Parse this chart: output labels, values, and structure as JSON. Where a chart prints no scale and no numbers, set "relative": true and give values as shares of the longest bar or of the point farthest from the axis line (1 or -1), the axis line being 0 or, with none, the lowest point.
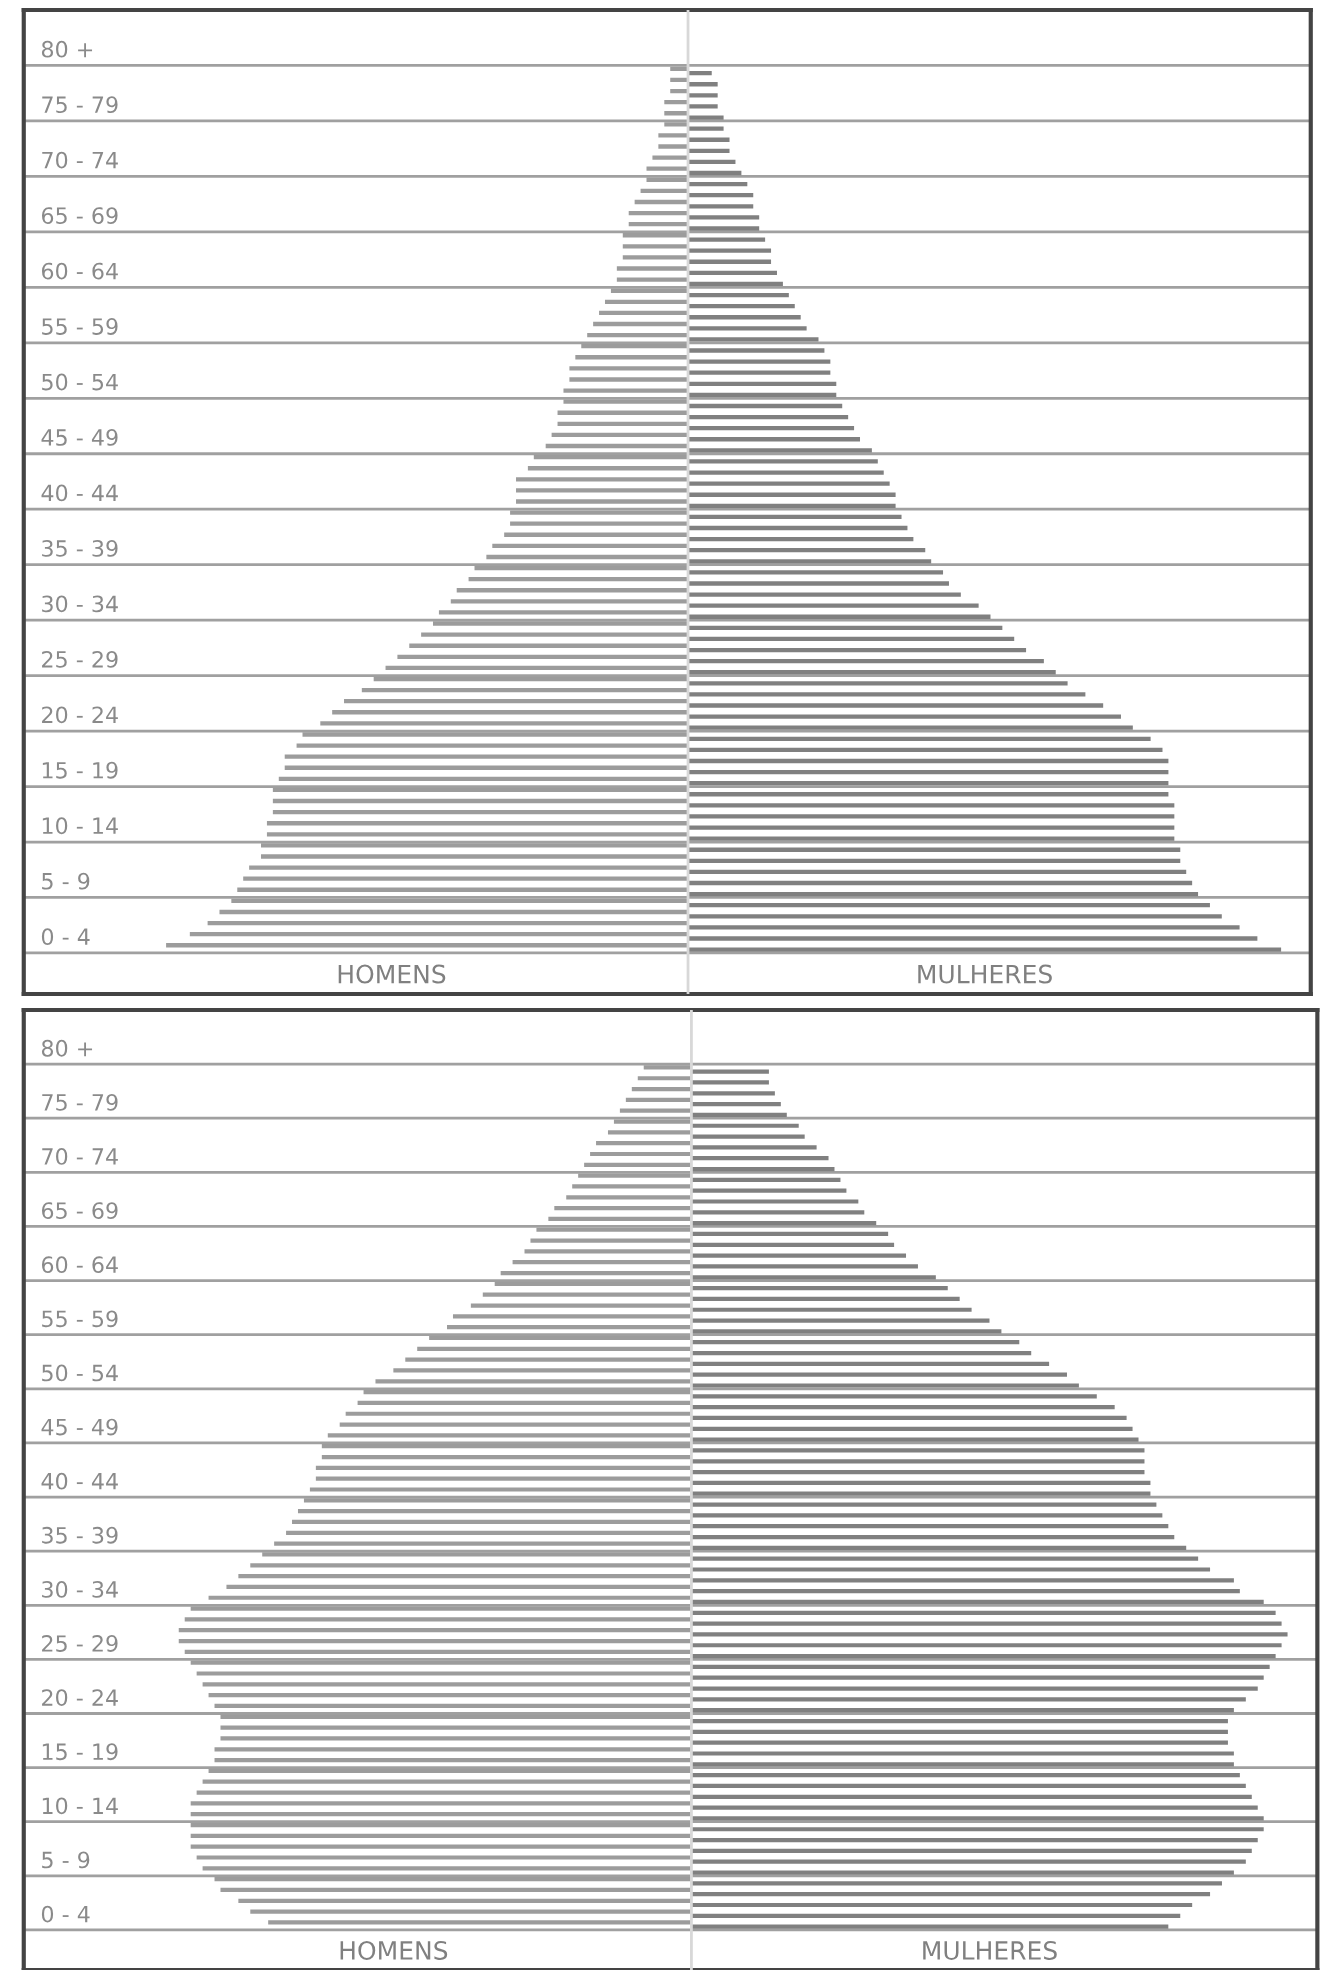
{
  "chart_data": [
    {
      "type": "bar",
      "orientation": "horizontal",
      "relative": true,
      "grid": "y",
      "categories": [
        null,
        null,
        null,
        "80 +",
        null,
        null,
        null,
        null,
        "75 - 79",
        null,
        null,
        null,
        null,
        "70 - 74",
        null,
        null,
        null,
        null,
        "65 - 69",
        null,
        null,
        null,
        null,
        "60 - 64",
        null,
        null,
        null,
        null,
        "55 - 59",
        null,
        null,
        null,
        null,
        "50 - 54",
        null,
        null,
        null,
        null,
        "45 - 49",
        null,
        null,
        null,
        null,
        "40 - 44",
        null,
        null,
        null,
        null,
        "35 - 39",
        null,
        null,
        null,
        null,
        "30 - 34",
        null,
        null,
        null,
        null,
        "25 - 29",
        null,
        null,
        null,
        null,
        "20 - 24",
        null,
        null,
        null,
        null,
        "15 - 19",
        null,
        null,
        null,
        null,
        "10 - 14",
        null,
        null,
        null,
        null,
        "5 - 9",
        null,
        null,
        null,
        null,
        "0 - 4",
        null
      ],
      "series": [
        {
          "name": "HOMENS",
          "color": "#9c9c9c",
          "values": [
            null,
            null,
            null,
            null,
            null,
            -0.03,
            -0.03,
            -0.03,
            -0.04,
            -0.04,
            -0.04,
            -0.05,
            -0.05,
            -0.06,
            -0.07,
            -0.07,
            -0.08,
            -0.09,
            -0.1,
            -0.1,
            -0.11,
            -0.11,
            -0.11,
            -0.12,
            -0.12,
            -0.13,
            -0.14,
            -0.15,
            -0.16,
            -0.17,
            -0.18,
            -0.19,
            -0.2,
            -0.2,
            -0.21,
            -0.21,
            -0.22,
            -0.22,
            -0.23,
            -0.24,
            -0.26,
            -0.27,
            -0.29,
            -0.29,
            -0.29,
            -0.3,
            -0.3,
            -0.31,
            -0.33,
            -0.34,
            -0.36,
            -0.37,
            -0.39,
            -0.4,
            -0.42,
            -0.43,
            -0.45,
            -0.47,
            -0.49,
            -0.51,
            -0.53,
            -0.55,
            -0.58,
            -0.6,
            -0.62,
            -0.65,
            -0.66,
            -0.68,
            -0.68,
            -0.69,
            -0.7,
            -0.7,
            -0.7,
            -0.71,
            -0.71,
            -0.72,
            -0.72,
            -0.74,
            -0.75,
            -0.76,
            -0.77,
            -0.79,
            -0.81,
            -0.84,
            -0.88
          ]
        },
        {
          "name": "MULHERES",
          "color": "#808080",
          "values": [
            null,
            null,
            null,
            null,
            null,
            0.04,
            0.05,
            0.05,
            0.05,
            0.06,
            0.06,
            0.07,
            0.07,
            0.08,
            0.09,
            0.1,
            0.11,
            0.11,
            0.12,
            0.12,
            0.13,
            0.14,
            0.14,
            0.15,
            0.16,
            0.17,
            0.18,
            0.19,
            0.2,
            0.22,
            0.23,
            0.24,
            0.24,
            0.25,
            0.25,
            0.26,
            0.27,
            0.28,
            0.29,
            0.31,
            0.32,
            0.33,
            0.34,
            0.35,
            0.35,
            0.36,
            0.37,
            0.38,
            0.4,
            0.41,
            0.43,
            0.44,
            0.46,
            0.49,
            0.51,
            0.53,
            0.55,
            0.57,
            0.6,
            0.62,
            0.64,
            0.67,
            0.7,
            0.73,
            0.75,
            0.78,
            0.8,
            0.81,
            0.81,
            0.81,
            0.81,
            0.82,
            0.82,
            0.82,
            0.82,
            0.83,
            0.83,
            0.84,
            0.85,
            0.86,
            0.88,
            0.9,
            0.93,
            0.96,
            1.0
          ]
        }
      ]
    },
    {
      "type": "bar",
      "orientation": "horizontal",
      "relative": true,
      "grid": "y",
      "categories": [
        null,
        null,
        null,
        "80 +",
        null,
        null,
        null,
        null,
        "75 - 79",
        null,
        null,
        null,
        null,
        "70 - 74",
        null,
        null,
        null,
        null,
        "65 - 69",
        null,
        null,
        null,
        null,
        "60 - 64",
        null,
        null,
        null,
        null,
        "55 - 59",
        null,
        null,
        null,
        null,
        "50 - 54",
        null,
        null,
        null,
        null,
        "45 - 49",
        null,
        null,
        null,
        null,
        "40 - 44",
        null,
        null,
        null,
        null,
        "35 - 39",
        null,
        null,
        null,
        null,
        "30 - 34",
        null,
        null,
        null,
        null,
        "25 - 29",
        null,
        null,
        null,
        null,
        "20 - 24",
        null,
        null,
        null,
        null,
        "15 - 19",
        null,
        null,
        null,
        null,
        "10 - 14",
        null,
        null,
        null,
        null,
        "5 - 9",
        null,
        null,
        null,
        null,
        "0 - 4",
        null
      ],
      "series": [
        {
          "name": "HOMENS",
          "color": "#9c9c9c",
          "values": [
            null,
            null,
            null,
            null,
            null,
            -0.08,
            -0.09,
            -0.1,
            -0.11,
            -0.12,
            -0.13,
            -0.14,
            -0.16,
            -0.17,
            -0.18,
            -0.19,
            -0.2,
            -0.21,
            -0.23,
            -0.24,
            -0.26,
            -0.27,
            -0.28,
            -0.3,
            -0.32,
            -0.33,
            -0.35,
            -0.37,
            -0.4,
            -0.41,
            -0.44,
            -0.46,
            -0.48,
            -0.5,
            -0.53,
            -0.55,
            -0.56,
            -0.58,
            -0.59,
            -0.61,
            -0.62,
            -0.62,
            -0.63,
            -0.63,
            -0.64,
            -0.65,
            -0.66,
            -0.67,
            -0.68,
            -0.7,
            -0.72,
            -0.74,
            -0.76,
            -0.78,
            -0.81,
            -0.84,
            -0.85,
            -0.86,
            -0.86,
            -0.85,
            -0.84,
            -0.83,
            -0.82,
            -0.81,
            -0.8,
            -0.79,
            -0.79,
            -0.79,
            -0.8,
            -0.8,
            -0.81,
            -0.82,
            -0.83,
            -0.84,
            -0.84,
            -0.84,
            -0.84,
            -0.84,
            -0.83,
            -0.82,
            -0.8,
            -0.79,
            -0.76,
            -0.74,
            -0.71
          ]
        },
        {
          "name": "MULHERES",
          "color": "#808080",
          "values": [
            null,
            null,
            null,
            null,
            null,
            0.13,
            0.13,
            0.14,
            0.15,
            0.16,
            0.18,
            0.19,
            0.21,
            0.23,
            0.24,
            0.25,
            0.26,
            0.28,
            0.29,
            0.31,
            0.33,
            0.34,
            0.36,
            0.38,
            0.41,
            0.43,
            0.45,
            0.47,
            0.5,
            0.52,
            0.55,
            0.57,
            0.6,
            0.63,
            0.65,
            0.68,
            0.71,
            0.73,
            0.74,
            0.75,
            0.76,
            0.76,
            0.76,
            0.77,
            0.77,
            0.78,
            0.79,
            0.8,
            0.81,
            0.83,
            0.85,
            0.87,
            0.91,
            0.92,
            0.96,
            0.98,
            0.99,
            1.0,
            0.99,
            0.98,
            0.97,
            0.96,
            0.95,
            0.93,
            0.91,
            0.9,
            0.9,
            0.9,
            0.91,
            0.91,
            0.92,
            0.93,
            0.94,
            0.95,
            0.96,
            0.96,
            0.95,
            0.94,
            0.93,
            0.91,
            0.89,
            0.87,
            0.84,
            0.82,
            0.8
          ]
        }
      ]
    }
  ]
}
